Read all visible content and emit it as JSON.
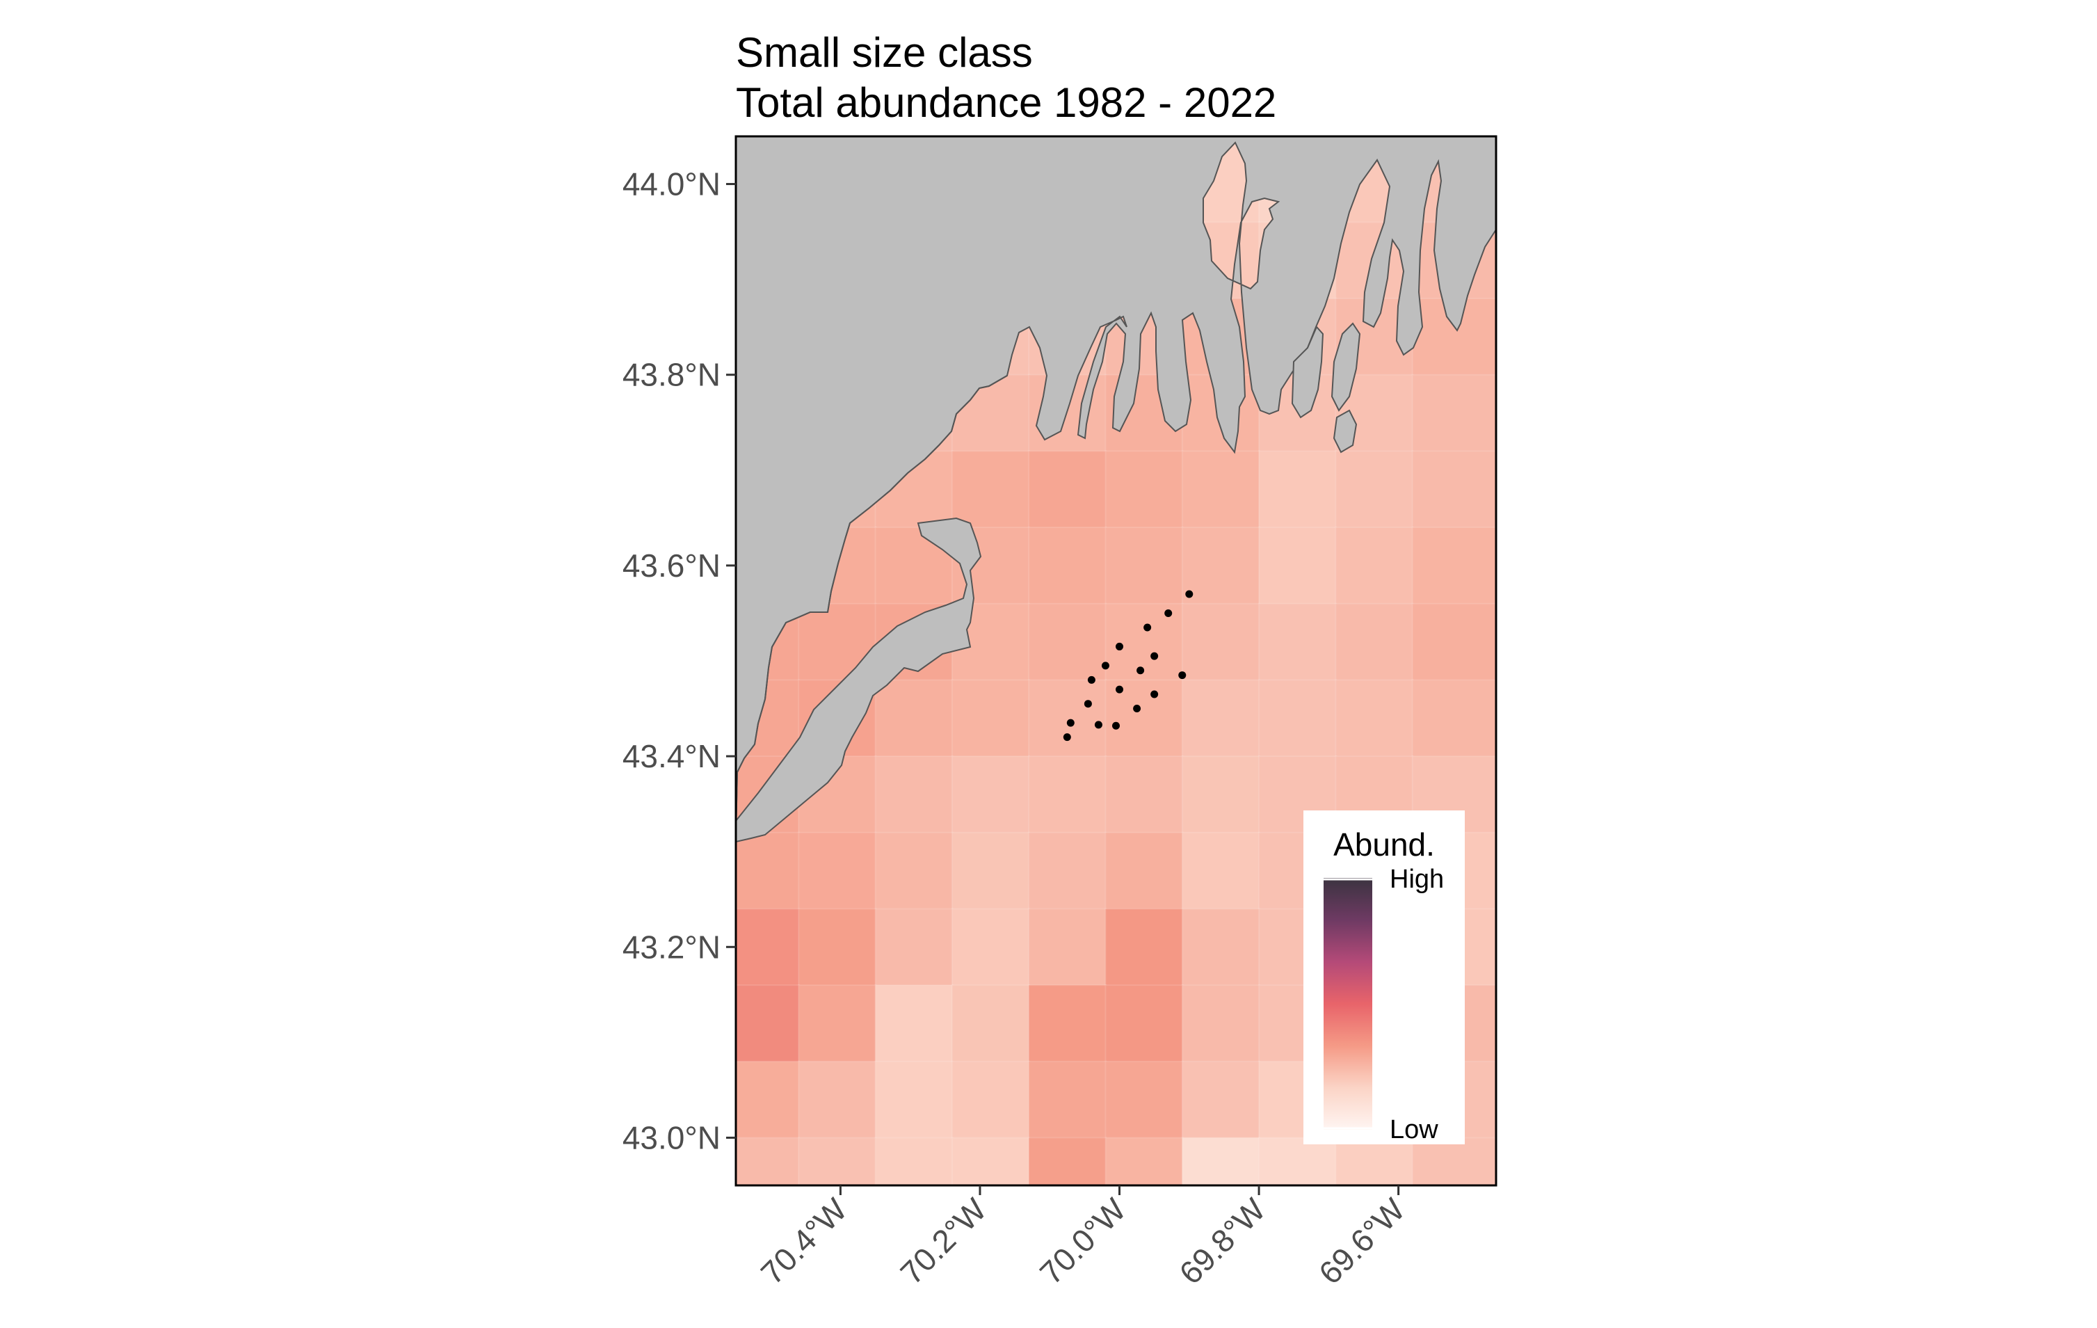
{
  "title": {
    "line1": "Small size class",
    "line2": "Total abundance 1982 - 2022"
  },
  "axes": {
    "y_ticks": [
      "44.0°N",
      "43.8°N",
      "43.6°N",
      "43.4°N",
      "43.2°N",
      "43.0°N"
    ],
    "x_ticks": [
      "70.4°W",
      "70.2°W",
      "70.0°W",
      "69.8°W",
      "69.6°W"
    ]
  },
  "legend": {
    "title": "Abund.",
    "high_label": "High",
    "low_label": "Low",
    "colors": [
      "#3b3340",
      "#6e3a63",
      "#b44a78",
      "#e8646a",
      "#f59a86",
      "#fbd4c6",
      "#fff5f2"
    ]
  },
  "colors": {
    "land": "#bebebe",
    "coastline": "#555555",
    "frame": "#000000"
  },
  "chart_data": {
    "type": "heatmap",
    "x_unit": "longitude (degrees E)",
    "y_unit": "latitude (degrees N)",
    "xlim": [
      -70.55,
      -69.46
    ],
    "ylim": [
      42.95,
      44.05
    ],
    "grid_x_edges": [
      -70.55,
      -70.46,
      -70.35,
      -70.24,
      -70.13,
      -70.02,
      -69.91,
      -69.8,
      -69.69,
      -69.58,
      -69.46
    ],
    "grid_y_edges": [
      44.05,
      43.96,
      43.88,
      43.8,
      43.72,
      43.64,
      43.56,
      43.48,
      43.4,
      43.32,
      43.24,
      43.16,
      43.08,
      43.0,
      42.95
    ],
    "relative_abundance": [
      [
        0.18,
        0.18,
        0.18,
        0.18,
        0.18,
        0.18,
        0.18,
        0.16,
        0.2,
        0.22
      ],
      [
        0.2,
        0.2,
        0.2,
        0.2,
        0.2,
        0.2,
        0.2,
        0.18,
        0.22,
        0.24
      ],
      [
        0.22,
        0.22,
        0.22,
        0.22,
        0.22,
        0.24,
        0.26,
        0.22,
        0.24,
        0.26
      ],
      [
        0.24,
        0.24,
        0.24,
        0.24,
        0.25,
        0.27,
        0.26,
        0.22,
        0.22,
        0.24
      ],
      [
        0.26,
        0.26,
        0.26,
        0.28,
        0.3,
        0.28,
        0.26,
        0.2,
        0.22,
        0.24
      ],
      [
        0.28,
        0.28,
        0.28,
        0.27,
        0.28,
        0.27,
        0.25,
        0.2,
        0.23,
        0.26
      ],
      [
        0.3,
        0.3,
        0.3,
        0.26,
        0.27,
        0.26,
        0.24,
        0.22,
        0.24,
        0.27
      ],
      [
        0.3,
        0.31,
        0.27,
        0.26,
        0.25,
        0.26,
        0.22,
        0.22,
        0.23,
        0.25
      ],
      [
        0.3,
        0.27,
        0.24,
        0.22,
        0.23,
        0.24,
        0.21,
        0.22,
        0.23,
        0.22
      ],
      [
        0.3,
        0.29,
        0.25,
        0.21,
        0.24,
        0.27,
        0.2,
        0.22,
        0.2,
        0.2
      ],
      [
        0.36,
        0.32,
        0.24,
        0.2,
        0.25,
        0.34,
        0.24,
        0.22,
        0.2,
        0.2
      ],
      [
        0.38,
        0.3,
        0.18,
        0.21,
        0.33,
        0.34,
        0.24,
        0.22,
        0.22,
        0.24
      ],
      [
        0.28,
        0.24,
        0.18,
        0.2,
        0.3,
        0.3,
        0.22,
        0.18,
        0.2,
        0.22
      ],
      [
        0.24,
        0.22,
        0.18,
        0.18,
        0.32,
        0.26,
        0.12,
        0.14,
        0.18,
        0.22
      ]
    ],
    "survey_stations": [
      [
        -69.9,
        43.57
      ],
      [
        -69.93,
        43.55
      ],
      [
        -69.96,
        43.535
      ],
      [
        -70.0,
        43.515
      ],
      [
        -69.95,
        43.505
      ],
      [
        -70.02,
        43.495
      ],
      [
        -69.97,
        43.49
      ],
      [
        -69.91,
        43.485
      ],
      [
        -70.04,
        43.48
      ],
      [
        -70.0,
        43.47
      ],
      [
        -69.95,
        43.465
      ],
      [
        -70.045,
        43.455
      ],
      [
        -69.975,
        43.45
      ],
      [
        -70.07,
        43.435
      ],
      [
        -70.03,
        43.433
      ],
      [
        -70.005,
        43.432
      ],
      [
        -70.075,
        43.42
      ]
    ]
  }
}
